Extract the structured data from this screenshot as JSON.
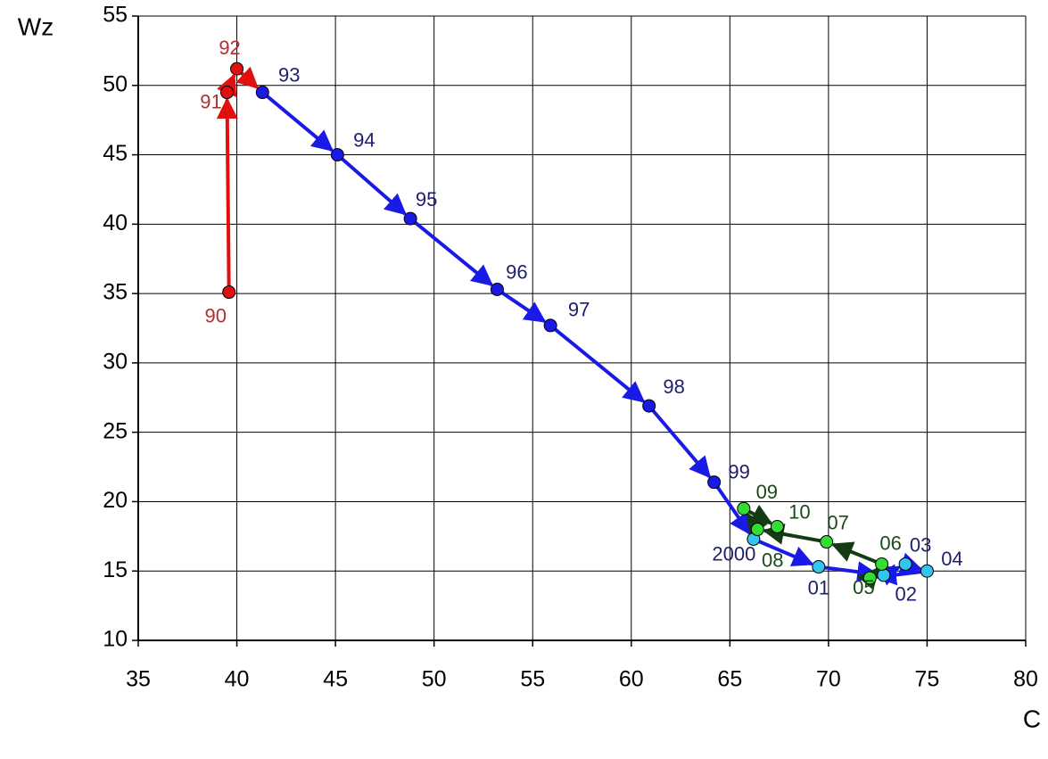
{
  "chart_data": {
    "type": "connected-scatter",
    "y_label": "Wz",
    "x_label": "C",
    "xlim": [
      35,
      80
    ],
    "xticks": [
      35,
      40,
      45,
      50,
      55,
      60,
      65,
      70,
      75,
      80
    ],
    "ylim": [
      10,
      55
    ],
    "yticks": [
      10,
      15,
      20,
      25,
      30,
      35,
      40,
      45,
      50,
      55
    ],
    "grid": true,
    "series": [
      {
        "color": "#e01010",
        "line_color": "#e01010",
        "label_color": "#b03030",
        "x": [
          39.6,
          39.5,
          40.0
        ],
        "values": [
          35.1,
          49.5,
          51.2
        ],
        "labels": [
          "90",
          "91",
          "92"
        ]
      },
      {
        "color": "#1a1ae6",
        "line_color": "#1a1ae6",
        "label_color": "#1e1e6e",
        "x": [
          41.3,
          45.1,
          48.8,
          53.2,
          55.9,
          60.9,
          64.2
        ],
        "values": [
          49.5,
          45.0,
          40.4,
          35.3,
          32.7,
          26.9,
          21.4
        ],
        "labels": [
          "93",
          "94",
          "95",
          "96",
          "97",
          "98",
          "99"
        ]
      },
      {
        "color": "#33c4f0",
        "line_color": "#1a1ae6",
        "label_color": "#1e1e6e",
        "x": [
          66.2,
          69.5,
          72.8,
          73.9,
          75.0
        ],
        "values": [
          17.3,
          15.3,
          14.7,
          15.5,
          15.0
        ],
        "labels": [
          "2000",
          "01",
          "02",
          "03",
          "04"
        ]
      },
      {
        "color": "#33dd33",
        "line_color": "#143c14",
        "label_color": "#1a4a1a",
        "x": [
          72.1,
          72.7,
          69.9,
          66.4,
          65.7,
          67.4
        ],
        "values": [
          14.5,
          15.5,
          17.1,
          18.0,
          19.5,
          18.2
        ],
        "labels": [
          "05",
          "06",
          "07",
          "08",
          "09",
          "10"
        ]
      }
    ]
  }
}
